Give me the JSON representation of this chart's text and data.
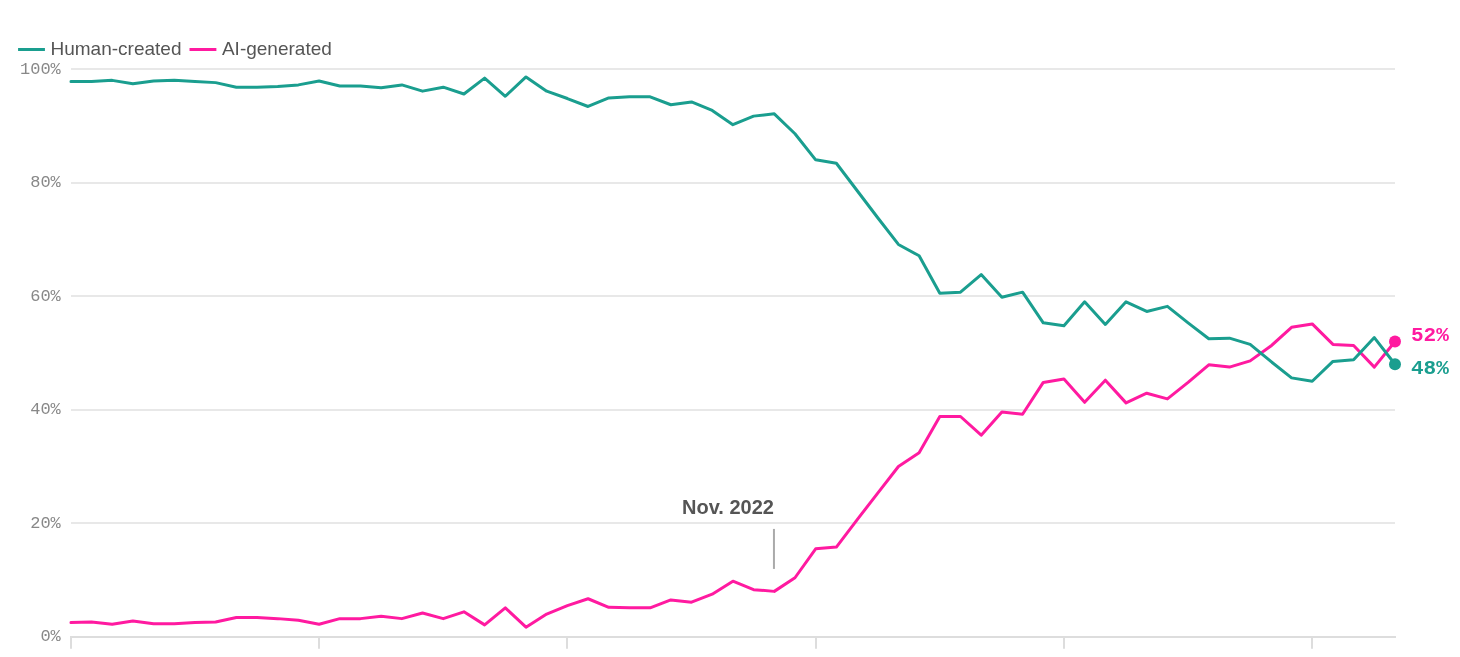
{
  "chart_data": {
    "type": "line",
    "categories": [
      null,
      null,
      null,
      null,
      null,
      null,
      null,
      null,
      null,
      null,
      null,
      null,
      null,
      null,
      null,
      null,
      null,
      null,
      null,
      null,
      null,
      null,
      null,
      null,
      null,
      null,
      null,
      null,
      null,
      null,
      null,
      null,
      null,
      null,
      null,
      null,
      null,
      null,
      null,
      null,
      null,
      null,
      null,
      null,
      null,
      null,
      null,
      null,
      null,
      null,
      null,
      null,
      null,
      null,
      null,
      null,
      null,
      null,
      null,
      null,
      null,
      null,
      null,
      null,
      null
    ],
    "series": [
      {
        "name": "Human-created",
        "color": "#1a9e8f",
        "values": [
          97.8,
          97.8,
          98.0,
          97.4,
          97.9,
          98.0,
          97.8,
          97.6,
          96.8,
          96.8,
          96.9,
          97.2,
          97.9,
          97.0,
          97.0,
          96.7,
          97.2,
          96.1,
          96.8,
          95.6,
          98.4,
          95.2,
          98.6,
          96.1,
          94.8,
          93.4,
          94.9,
          95.1,
          95.1,
          93.7,
          94.2,
          92.7,
          90.2,
          91.7,
          92.1,
          88.6,
          84.0,
          83.4,
          78.6,
          73.8,
          69.1,
          67.1,
          60.5,
          60.7,
          63.8,
          59.8,
          60.7,
          55.3,
          54.8,
          59.0,
          55.0,
          59.0,
          57.3,
          58.2,
          55.3,
          52.5,
          52.6,
          51.5,
          48.5,
          45.6,
          45.0,
          48.5,
          48.8,
          52.7,
          48
        ],
        "value_labels": [
          null,
          null,
          null,
          null,
          null,
          null,
          null,
          null,
          null,
          null,
          null,
          null,
          null,
          null,
          null,
          null,
          null,
          null,
          null,
          null,
          null,
          null,
          null,
          null,
          null,
          null,
          null,
          null,
          null,
          null,
          null,
          null,
          null,
          null,
          null,
          null,
          null,
          null,
          null,
          null,
          null,
          null,
          null,
          null,
          null,
          null,
          null,
          null,
          null,
          null,
          null,
          null,
          null,
          null,
          null,
          null,
          null,
          null,
          null,
          null,
          null,
          null,
          null,
          null,
          "48%"
        ]
      },
      {
        "name": "AI-generated",
        "color": "#ff1aa0",
        "values": [
          2.5,
          2.6,
          2.2,
          2.8,
          2.3,
          2.3,
          2.5,
          2.6,
          3.4,
          3.4,
          3.2,
          2.9,
          2.2,
          3.2,
          3.2,
          3.6,
          3.2,
          4.2,
          3.2,
          4.4,
          2.1,
          5.1,
          1.7,
          4.0,
          5.5,
          6.7,
          5.2,
          5.1,
          5.1,
          6.5,
          6.1,
          7.5,
          9.8,
          8.3,
          8.0,
          10.4,
          15.5,
          15.8,
          20.6,
          25.3,
          30.0,
          32.4,
          38.8,
          38.8,
          35.5,
          39.6,
          39.2,
          44.8,
          45.4,
          41.3,
          45.2,
          41.2,
          42.9,
          41.9,
          44.8,
          47.9,
          47.5,
          48.6,
          51.2,
          54.5,
          55.1,
          51.5,
          51.3,
          47.5,
          52
        ],
        "value_labels": [
          null,
          null,
          null,
          null,
          null,
          null,
          null,
          null,
          null,
          null,
          null,
          null,
          null,
          null,
          null,
          null,
          null,
          null,
          null,
          null,
          null,
          null,
          null,
          null,
          null,
          null,
          null,
          null,
          null,
          null,
          null,
          null,
          null,
          null,
          null,
          null,
          null,
          null,
          null,
          null,
          null,
          null,
          null,
          null,
          null,
          null,
          null,
          null,
          null,
          null,
          null,
          null,
          null,
          null,
          null,
          null,
          null,
          null,
          null,
          null,
          null,
          null,
          null,
          null,
          "52%"
        ]
      }
    ],
    "ylim": [
      0,
      100
    ],
    "yticks": [
      {
        "value": 0,
        "label": "0%"
      },
      {
        "value": 20,
        "label": "20%"
      },
      {
        "value": 40,
        "label": "40%"
      },
      {
        "value": 60,
        "label": "60%"
      },
      {
        "value": 80,
        "label": "80%"
      },
      {
        "value": 100,
        "label": "100%"
      }
    ],
    "tick_labels": "y",
    "grid": "y",
    "legend": "top left",
    "marker": "none",
    "line_style": "solid",
    "annotations": [
      "Nov. 2022"
    ]
  }
}
